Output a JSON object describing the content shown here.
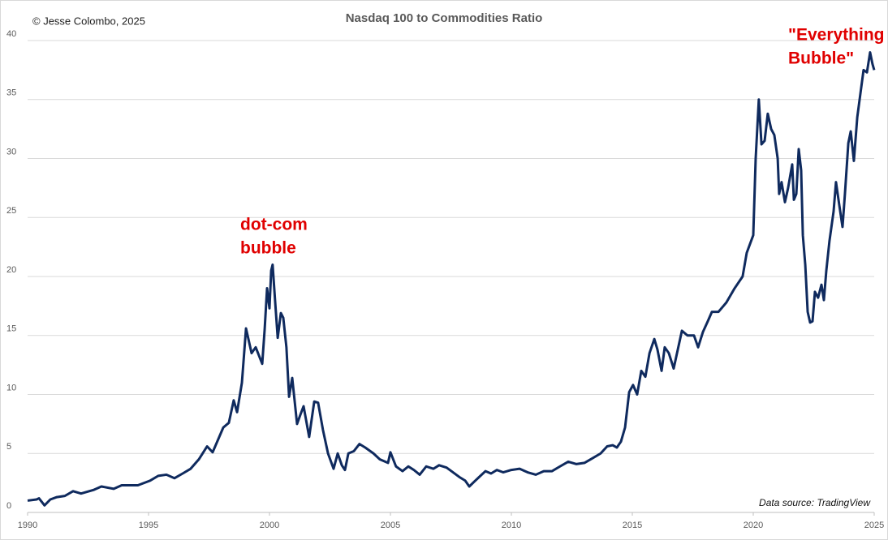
{
  "chart_data": {
    "type": "line",
    "title": "Nasdaq 100 to Commodities Ratio",
    "copyright": "© Jesse Colombo, 2025",
    "source": "Data source: TradingView",
    "annotations": [
      {
        "lines": [
          "dot-com",
          "bubble"
        ]
      },
      {
        "lines": [
          "\"Everything",
          "Bubble\""
        ]
      }
    ],
    "xlim": [
      1990,
      2025
    ],
    "xticks": [
      1990,
      1995,
      2000,
      2005,
      2010,
      2015,
      2020,
      2025
    ],
    "ylim": [
      0,
      40
    ],
    "yticks": [
      0,
      5,
      10,
      15,
      20,
      25,
      30,
      35,
      40
    ],
    "grid": true,
    "series": [
      {
        "name": "Nasdaq 100 to Commodities Ratio",
        "color": "#0f2a5e",
        "x": [
          1990.0,
          1990.37,
          1990.47,
          1990.7,
          1990.94,
          1991.21,
          1991.54,
          1991.88,
          1992.21,
          1992.72,
          1993.05,
          1993.56,
          1993.89,
          1994.56,
          1995.07,
          1995.4,
          1995.74,
          1996.07,
          1996.41,
          1996.74,
          1997.08,
          1997.42,
          1997.65,
          1998.09,
          1998.32,
          1998.52,
          1998.66,
          1998.86,
          1999.03,
          1999.26,
          1999.43,
          1999.7,
          1999.8,
          1999.9,
          2000.0,
          2000.07,
          2000.13,
          2000.23,
          2000.34,
          2000.47,
          2000.57,
          2000.7,
          2000.81,
          2000.94,
          2001.14,
          2001.28,
          2001.41,
          2001.64,
          2001.85,
          2002.01,
          2002.21,
          2002.42,
          2002.65,
          2002.82,
          2002.99,
          2003.12,
          2003.26,
          2003.49,
          2003.72,
          2003.96,
          2004.3,
          2004.56,
          2004.9,
          2005.0,
          2005.23,
          2005.5,
          2005.74,
          2005.97,
          2006.21,
          2006.48,
          2006.78,
          2007.01,
          2007.32,
          2007.52,
          2007.85,
          2008.09,
          2008.26,
          2008.46,
          2008.72,
          2008.93,
          2009.16,
          2009.4,
          2009.66,
          2010.0,
          2010.34,
          2010.67,
          2011.01,
          2011.34,
          2011.68,
          2012.01,
          2012.35,
          2012.68,
          2013.02,
          2013.36,
          2013.69,
          2013.96,
          2014.19,
          2014.36,
          2014.53,
          2014.7,
          2014.87,
          2015.03,
          2015.2,
          2015.37,
          2015.54,
          2015.71,
          2015.91,
          2016.04,
          2016.21,
          2016.34,
          2016.51,
          2016.71,
          2016.88,
          2017.05,
          2017.28,
          2017.55,
          2017.72,
          2017.92,
          2018.12,
          2018.29,
          2018.56,
          2018.89,
          2019.23,
          2019.56,
          2019.73,
          2020.0,
          2020.1,
          2020.23,
          2020.34,
          2020.47,
          2020.6,
          2020.74,
          2020.87,
          2021.01,
          2021.07,
          2021.17,
          2021.31,
          2021.44,
          2021.61,
          2021.68,
          2021.78,
          2021.88,
          2021.98,
          2022.05,
          2022.15,
          2022.25,
          2022.35,
          2022.45,
          2022.55,
          2022.68,
          2022.82,
          2022.92,
          2023.02,
          2023.15,
          2023.32,
          2023.42,
          2023.56,
          2023.69,
          2023.79,
          2023.93,
          2024.03,
          2024.16,
          2024.3,
          2024.43,
          2024.56,
          2024.7,
          2024.83,
          2024.93,
          2025.0
        ],
        "values": [
          1.0,
          1.1,
          1.2,
          0.6,
          1.1,
          1.3,
          1.4,
          1.8,
          1.6,
          1.9,
          2.2,
          2.0,
          2.3,
          2.3,
          2.7,
          3.1,
          3.2,
          2.9,
          3.3,
          3.7,
          4.5,
          5.6,
          5.1,
          7.2,
          7.6,
          9.5,
          8.5,
          11.0,
          15.6,
          13.5,
          14.0,
          12.6,
          15.5,
          19.0,
          17.3,
          20.5,
          21.0,
          18.0,
          14.8,
          16.9,
          16.5,
          14.0,
          9.8,
          11.4,
          7.5,
          8.3,
          9.0,
          6.4,
          9.4,
          9.3,
          7.0,
          5.0,
          3.7,
          5.0,
          4.0,
          3.6,
          5.0,
          5.2,
          5.8,
          5.5,
          5.0,
          4.5,
          4.2,
          5.1,
          3.9,
          3.5,
          3.9,
          3.6,
          3.2,
          3.9,
          3.7,
          4.0,
          3.8,
          3.5,
          3.0,
          2.7,
          2.2,
          2.6,
          3.1,
          3.5,
          3.3,
          3.6,
          3.4,
          3.6,
          3.7,
          3.4,
          3.2,
          3.5,
          3.5,
          3.9,
          4.3,
          4.1,
          4.2,
          4.6,
          5.0,
          5.6,
          5.7,
          5.5,
          6.0,
          7.2,
          10.2,
          10.8,
          10.0,
          12.0,
          11.5,
          13.5,
          14.7,
          13.8,
          12.0,
          14.0,
          13.5,
          12.2,
          13.8,
          15.4,
          15.0,
          15.0,
          14.0,
          15.3,
          16.2,
          17.0,
          17.0,
          17.8,
          19.0,
          20.0,
          22.0,
          23.5,
          30.0,
          35.0,
          31.2,
          31.5,
          33.8,
          32.5,
          32.0,
          30.0,
          27.0,
          28.0,
          26.3,
          27.5,
          29.5,
          26.5,
          27.0,
          30.8,
          29.0,
          23.5,
          21.0,
          17.0,
          16.1,
          16.2,
          18.7,
          18.2,
          19.3,
          18.0,
          20.5,
          23.0,
          25.5,
          28.0,
          26.0,
          24.2,
          27.0,
          31.3,
          32.3,
          29.8,
          33.5,
          35.5,
          37.5,
          37.3,
          39.0,
          38.0,
          37.5
        ]
      }
    ]
  }
}
